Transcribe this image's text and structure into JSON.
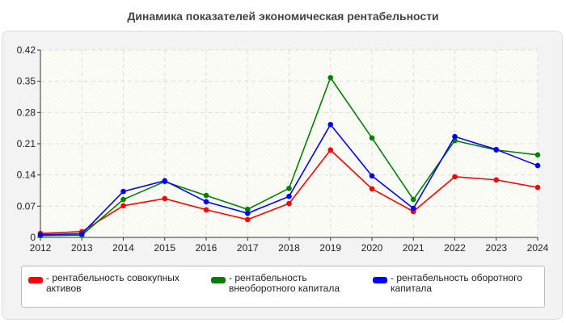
{
  "chart_data": {
    "type": "line",
    "title": "Динамика показателей экономическая рентабельности",
    "x": [
      "2012",
      "2013",
      "2014",
      "2015",
      "2016",
      "2017",
      "2018",
      "2019",
      "2020",
      "2021",
      "2022",
      "2023",
      "2024"
    ],
    "yticks": [
      "0",
      "0.07",
      "0.14",
      "0.21",
      "0.28",
      "0.35",
      "0.42"
    ],
    "ylim": [
      0,
      0.42
    ],
    "grid": true,
    "legend_position": "bottom",
    "series": [
      {
        "name": "- рентабельность совокупных активов",
        "color": "#ff0000",
        "values": [
          0.009,
          0.013,
          0.071,
          0.087,
          0.062,
          0.04,
          0.076,
          0.196,
          0.109,
          0.058,
          0.136,
          0.129,
          0.112
        ]
      },
      {
        "name": "- рентабельность внеоборотного капитала",
        "color": "#008000",
        "values": [
          0.004,
          0.005,
          0.085,
          0.125,
          0.094,
          0.063,
          0.11,
          0.358,
          0.223,
          0.085,
          0.217,
          0.196,
          0.185
        ]
      },
      {
        "name": "- рентабельность оборотного капитала",
        "color": "#0000ff",
        "values": [
          0.006,
          0.008,
          0.103,
          0.127,
          0.08,
          0.054,
          0.092,
          0.253,
          0.138,
          0.065,
          0.226,
          0.197,
          0.161
        ]
      }
    ]
  }
}
